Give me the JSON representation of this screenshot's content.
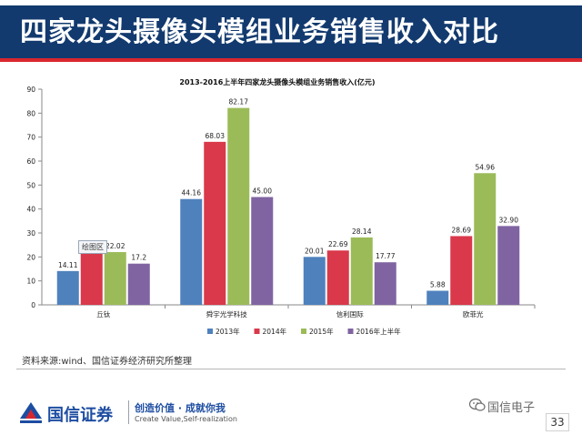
{
  "slide": {
    "title": "四家龙头摄像头模组业务销售收入对比",
    "page_number": "33"
  },
  "source": "资料来源:wind、国信证券经济研究所整理",
  "plot_area_label": "绘图区",
  "footer": {
    "brand": "国信证券",
    "slogan_cn": "创造价值 · 成就你我",
    "slogan_en": "Create Value,Self-realization",
    "watermark": "国信电子"
  },
  "colors": {
    "header_band": "#123a6f",
    "header_accent": "#d9272e",
    "series": [
      "#4f81bd",
      "#d9394a",
      "#9bbb59",
      "#8064a2"
    ]
  },
  "icons": {
    "logo": "guosen-logo-icon",
    "wechat": "wechat-icon"
  },
  "chart_data": {
    "type": "bar",
    "title": "2013-2016上半年四家龙头摄像头模组业务销售收入(亿元)",
    "xlabel": "",
    "ylabel": "",
    "ylim": [
      0,
      90
    ],
    "yticks": [
      0,
      10,
      20,
      30,
      40,
      50,
      60,
      70,
      80,
      90
    ],
    "grid": false,
    "legend_position": "bottom",
    "categories": [
      "丘钛",
      "舜宇光学科技",
      "信利国际",
      "欧菲光"
    ],
    "series": [
      {
        "name": "2013年",
        "values": [
          14.11,
          44.16,
          20.01,
          5.88
        ],
        "labels": [
          "14.11",
          "44.16",
          "20.01",
          "5.88"
        ]
      },
      {
        "name": "2014年",
        "values": [
          21.61,
          68.03,
          22.69,
          28.69
        ],
        "labels": [
          "21.61",
          "68.03",
          "22.69",
          "28.69"
        ]
      },
      {
        "name": "2015年",
        "values": [
          22.02,
          82.17,
          28.14,
          54.96
        ],
        "labels": [
          "22.02",
          "82.17",
          "28.14",
          "54.96"
        ]
      },
      {
        "name": "2016年上半年",
        "values": [
          17.2,
          45.0,
          17.77,
          32.9
        ],
        "labels": [
          "17.2",
          "45.00",
          "17.77",
          "32.90"
        ]
      }
    ]
  }
}
